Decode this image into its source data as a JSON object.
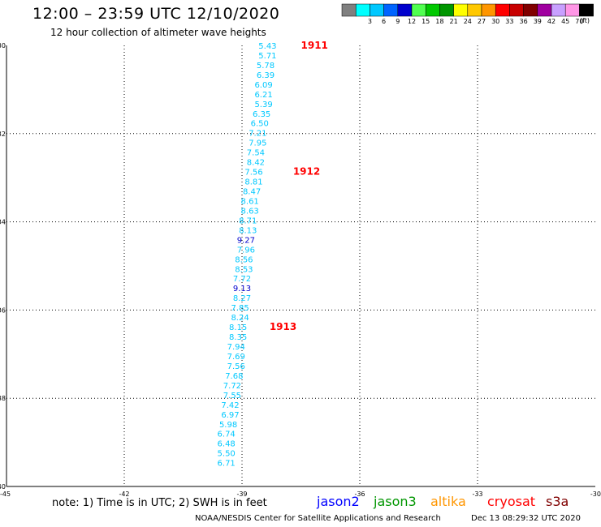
{
  "header": {
    "title": "12:00 – 23:59 UTC 12/10/2020",
    "subtitle": "12 hour collection of altimeter wave heights"
  },
  "colorbar": {
    "unit": "(ft)",
    "bins": [
      {
        "label": "",
        "color": "#808080"
      },
      {
        "label": "3",
        "color": "#00ffff"
      },
      {
        "label": "6",
        "color": "#00c8ff"
      },
      {
        "label": "9",
        "color": "#0064ff"
      },
      {
        "label": "12",
        "color": "#0000cd"
      },
      {
        "label": "15",
        "color": "#50ff50"
      },
      {
        "label": "18",
        "color": "#00c800"
      },
      {
        "label": "21",
        "color": "#009600"
      },
      {
        "label": "24",
        "color": "#ffff00"
      },
      {
        "label": "27",
        "color": "#ffc800"
      },
      {
        "label": "30",
        "color": "#ff9600"
      },
      {
        "label": "33",
        "color": "#ff0000"
      },
      {
        "label": "36",
        "color": "#c80000"
      },
      {
        "label": "39",
        "color": "#800000"
      },
      {
        "label": "42",
        "color": "#a000a0"
      },
      {
        "label": "45",
        "color": "#c8a0ff"
      },
      {
        "label": "70",
        "color": "#ff96e6"
      },
      {
        "label": "",
        "color": "#000000"
      }
    ]
  },
  "chart_data": {
    "type": "scatter",
    "title": "12:00 – 23:59 UTC 12/10/2020",
    "xlim": [
      -45,
      -30
    ],
    "ylim": [
      -40,
      -30
    ],
    "x_ticks": [
      "-45",
      "-42",
      "-39",
      "-36",
      "-33",
      "-30"
    ],
    "y_ticks": [
      "-30",
      "-32",
      "-34",
      "-36",
      "-38",
      "-40"
    ],
    "x_tick_values": [
      -45,
      -42,
      -39,
      -36,
      -33,
      -30
    ],
    "y_tick_values": [
      -30,
      -32,
      -34,
      -36,
      -38,
      -40
    ],
    "grid": true,
    "points": [
      {
        "lon": -38.35,
        "lat": -30.0,
        "value": "5.43",
        "color": "#00c8ff"
      },
      {
        "lon": -38.35,
        "lat": -30.22,
        "value": "5.71",
        "color": "#00c8ff"
      },
      {
        "lon": -38.4,
        "lat": -30.44,
        "value": "5.78",
        "color": "#00c8ff"
      },
      {
        "lon": -38.4,
        "lat": -30.66,
        "value": "6.39",
        "color": "#00c8ff"
      },
      {
        "lon": -38.45,
        "lat": -30.88,
        "value": "6.09",
        "color": "#00c8ff"
      },
      {
        "lon": -38.45,
        "lat": -31.1,
        "value": "6.21",
        "color": "#00c8ff"
      },
      {
        "lon": -38.45,
        "lat": -31.32,
        "value": "5.39",
        "color": "#00c8ff"
      },
      {
        "lon": -38.5,
        "lat": -31.54,
        "value": "6.35",
        "color": "#00c8ff"
      },
      {
        "lon": -38.55,
        "lat": -31.76,
        "value": "6.50",
        "color": "#00c8ff"
      },
      {
        "lon": -38.6,
        "lat": -31.98,
        "value": "7.21",
        "color": "#00c8ff"
      },
      {
        "lon": -38.6,
        "lat": -32.2,
        "value": "7.95",
        "color": "#00c8ff"
      },
      {
        "lon": -38.65,
        "lat": -32.42,
        "value": "7.54",
        "color": "#00c8ff"
      },
      {
        "lon": -38.65,
        "lat": -32.64,
        "value": "8.42",
        "color": "#00c8ff"
      },
      {
        "lon": -38.7,
        "lat": -32.86,
        "value": "7.56",
        "color": "#00c8ff"
      },
      {
        "lon": -38.7,
        "lat": -33.08,
        "value": "8.81",
        "color": "#00c8ff"
      },
      {
        "lon": -38.75,
        "lat": -33.3,
        "value": "8.47",
        "color": "#00c8ff"
      },
      {
        "lon": -38.8,
        "lat": -33.52,
        "value": "8.61",
        "color": "#00c8ff"
      },
      {
        "lon": -38.8,
        "lat": -33.74,
        "value": "8.63",
        "color": "#00c8ff"
      },
      {
        "lon": -38.85,
        "lat": -33.96,
        "value": "8.71",
        "color": "#00c8ff"
      },
      {
        "lon": -38.85,
        "lat": -34.18,
        "value": "8.13",
        "color": "#00c8ff"
      },
      {
        "lon": -38.9,
        "lat": -34.4,
        "value": "9.27",
        "color": "#0000cd"
      },
      {
        "lon": -38.9,
        "lat": -34.62,
        "value": "7.96",
        "color": "#00c8ff"
      },
      {
        "lon": -38.95,
        "lat": -34.84,
        "value": "8.56",
        "color": "#00c8ff"
      },
      {
        "lon": -38.95,
        "lat": -35.06,
        "value": "8.53",
        "color": "#00c8ff"
      },
      {
        "lon": -39.0,
        "lat": -35.28,
        "value": "7.72",
        "color": "#00c8ff"
      },
      {
        "lon": -39.0,
        "lat": -35.5,
        "value": "9.13",
        "color": "#0000cd"
      },
      {
        "lon": -39.0,
        "lat": -35.72,
        "value": "8.27",
        "color": "#00c8ff"
      },
      {
        "lon": -39.05,
        "lat": -35.94,
        "value": "7.85",
        "color": "#00c8ff"
      },
      {
        "lon": -39.05,
        "lat": -36.16,
        "value": "8.24",
        "color": "#00c8ff"
      },
      {
        "lon": -39.1,
        "lat": -36.38,
        "value": "8.15",
        "color": "#00c8ff"
      },
      {
        "lon": -39.1,
        "lat": -36.6,
        "value": "8.35",
        "color": "#00c8ff"
      },
      {
        "lon": -39.15,
        "lat": -36.82,
        "value": "7.94",
        "color": "#00c8ff"
      },
      {
        "lon": -39.15,
        "lat": -37.04,
        "value": "7.69",
        "color": "#00c8ff"
      },
      {
        "lon": -39.15,
        "lat": -37.26,
        "value": "7.56",
        "color": "#00c8ff"
      },
      {
        "lon": -39.2,
        "lat": -37.48,
        "value": "7.68",
        "color": "#00c8ff"
      },
      {
        "lon": -39.25,
        "lat": -37.7,
        "value": "7.72",
        "color": "#00c8ff"
      },
      {
        "lon": -39.25,
        "lat": -37.92,
        "value": "7.55",
        "color": "#00c8ff"
      },
      {
        "lon": -39.3,
        "lat": -38.14,
        "value": "7.42",
        "color": "#00c8ff"
      },
      {
        "lon": -39.3,
        "lat": -38.36,
        "value": "6.97",
        "color": "#00c8ff"
      },
      {
        "lon": -39.35,
        "lat": -38.58,
        "value": "5.98",
        "color": "#00c8ff"
      },
      {
        "lon": -39.4,
        "lat": -38.8,
        "value": "6.74",
        "color": "#00c8ff"
      },
      {
        "lon": -39.4,
        "lat": -39.02,
        "value": "6.48",
        "color": "#00c8ff"
      },
      {
        "lon": -39.4,
        "lat": -39.24,
        "value": "5.50",
        "color": "#00c8ff"
      },
      {
        "lon": -39.4,
        "lat": -39.46,
        "value": "6.71",
        "color": "#00c8ff"
      }
    ],
    "pass_labels": [
      {
        "lon": -37.5,
        "lat": -30.0,
        "text": "1911",
        "color": "#ff0000"
      },
      {
        "lon": -37.7,
        "lat": -32.86,
        "text": "1912",
        "color": "#ff0000"
      },
      {
        "lon": -38.3,
        "lat": -36.38,
        "text": "1913",
        "color": "#ff0000"
      }
    ]
  },
  "footer": {
    "note": "note:  1) Time is in UTC;  2) SWH is in feet",
    "satellites": [
      {
        "name": "jason2",
        "color": "#0000ff"
      },
      {
        "name": "jason3",
        "color": "#009600"
      },
      {
        "name": "altika",
        "color": "#ff9600"
      },
      {
        "name": "cryosat",
        "color": "#ff0000"
      },
      {
        "name": "s3a",
        "color": "#800000"
      }
    ],
    "credit": "NOAA/NESDIS Center for Satellite Applications and Research",
    "timestamp": "Dec 13 08:29:32 UTC 2020"
  }
}
